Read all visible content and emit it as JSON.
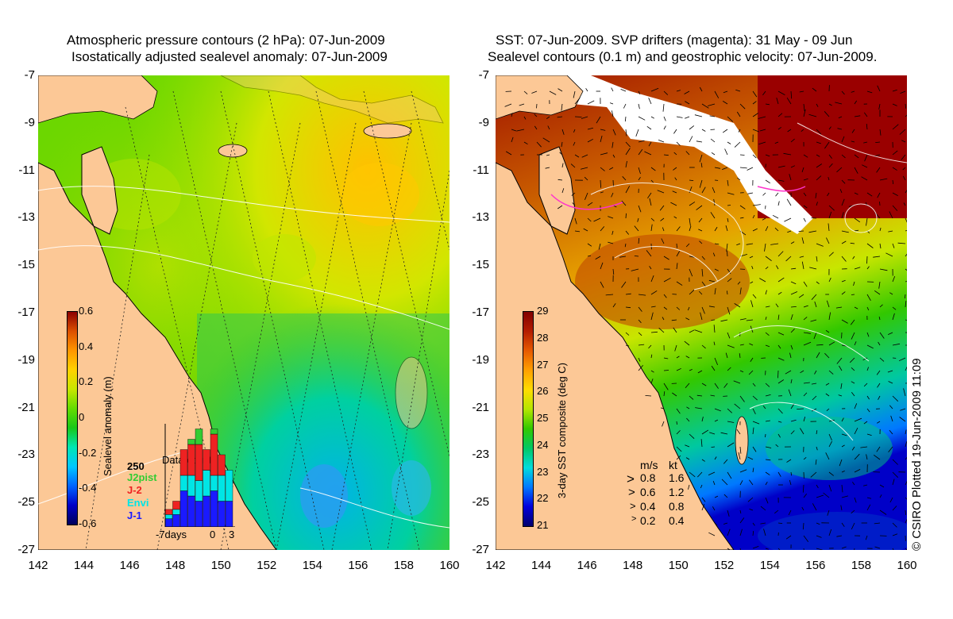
{
  "left_panel": {
    "title_line1": "Atmospheric pressure contours (2 hPa): 07-Jun-2009",
    "title_line2": "Isostatically adjusted sealevel anomaly: 07-Jun-2009",
    "colorbar": {
      "label": "Sealevel anomaly (m)",
      "ticks": [
        "0.6",
        "0.4",
        "0.2",
        "0",
        "-0.2",
        "-0.4",
        "-0.6"
      ],
      "range": [
        -0.6,
        0.6
      ]
    },
    "data_count": {
      "title": "Data count",
      "max_label": "250",
      "x_labels": [
        "-7days",
        "0",
        "3"
      ],
      "legend": [
        {
          "name": "J2pist",
          "color": "#33cc33"
        },
        {
          "name": "J-2",
          "color": "#ee2222"
        },
        {
          "name": "Envi",
          "color": "#00e5e5"
        },
        {
          "name": "J-1",
          "color": "#1a1aff"
        }
      ],
      "bars": [
        {
          "j1": 0.08,
          "envi": 0.04,
          "j2": 0.05,
          "j2p": 0
        },
        {
          "j1": 0.12,
          "envi": 0.05,
          "j2": 0.08,
          "j2p": 0
        },
        {
          "j1": 0.35,
          "envi": 0.15,
          "j2": 0.25,
          "j2p": 0
        },
        {
          "j1": 0.3,
          "envi": 0.2,
          "j2": 0.3,
          "j2p": 0.05
        },
        {
          "j1": 0.25,
          "envi": 0.2,
          "j2": 0.35,
          "j2p": 0.15
        },
        {
          "j1": 0.3,
          "envi": 0.25,
          "j2": 0.2,
          "j2p": 0
        },
        {
          "j1": 0.35,
          "envi": 0.15,
          "j2": 0.4,
          "j2p": 0.05
        },
        {
          "j1": 0.25,
          "envi": 0.25,
          "j2": 0.2,
          "j2p": 0
        },
        {
          "j1": 0.25,
          "envi": 0.3,
          "j2": 0,
          "j2p": 0
        }
      ]
    }
  },
  "right_panel": {
    "title_line1": "SST: 07-Jun-2009. SVP drifters (magenta): 31 May - 09 Jun",
    "title_line2": "Sealevel contours (0.1 m) and geostrophic velocity: 07-Jun-2009.",
    "colorbar": {
      "label": "3-day SST composite (deg C)",
      "ticks": [
        "29",
        "28",
        "27",
        "26",
        "25",
        "24",
        "23",
        "22",
        "21"
      ],
      "range": [
        21,
        29
      ]
    },
    "velocity_legend": {
      "header_ms": "m/s",
      "header_kt": "kt",
      "rows": [
        {
          "ms": "0.8",
          "kt": "1.6"
        },
        {
          "ms": "0.6",
          "kt": "1.2"
        },
        {
          "ms": "0.4",
          "kt": "0.8"
        },
        {
          "ms": "0.2",
          "kt": "0.4"
        }
      ]
    }
  },
  "axes": {
    "y_ticks": [
      "-7",
      "-9",
      "-11",
      "-13",
      "-15",
      "-17",
      "-19",
      "-21",
      "-23",
      "-25",
      "-27"
    ],
    "x_ticks": [
      "142",
      "144",
      "146",
      "148",
      "150",
      "152",
      "154",
      "156",
      "158",
      "160"
    ]
  },
  "credit": "© CSIRO Plotted 19-Jun-2009 11:09",
  "colors": {
    "land": "#fcc896",
    "anomaly_scale": [
      "#00005a",
      "#0000c8",
      "#0064ff",
      "#00c8ff",
      "#00e6b4",
      "#19c819",
      "#64dc00",
      "#c8e600",
      "#ffd200",
      "#ff9600",
      "#dc5000",
      "#8c0000"
    ],
    "sst_scale": [
      "#00006e",
      "#0000dc",
      "#0078ff",
      "#00dcdc",
      "#00c864",
      "#32c800",
      "#b4e600",
      "#ffdc00",
      "#ffa000",
      "#e65a00",
      "#b41e00",
      "#820000"
    ]
  }
}
